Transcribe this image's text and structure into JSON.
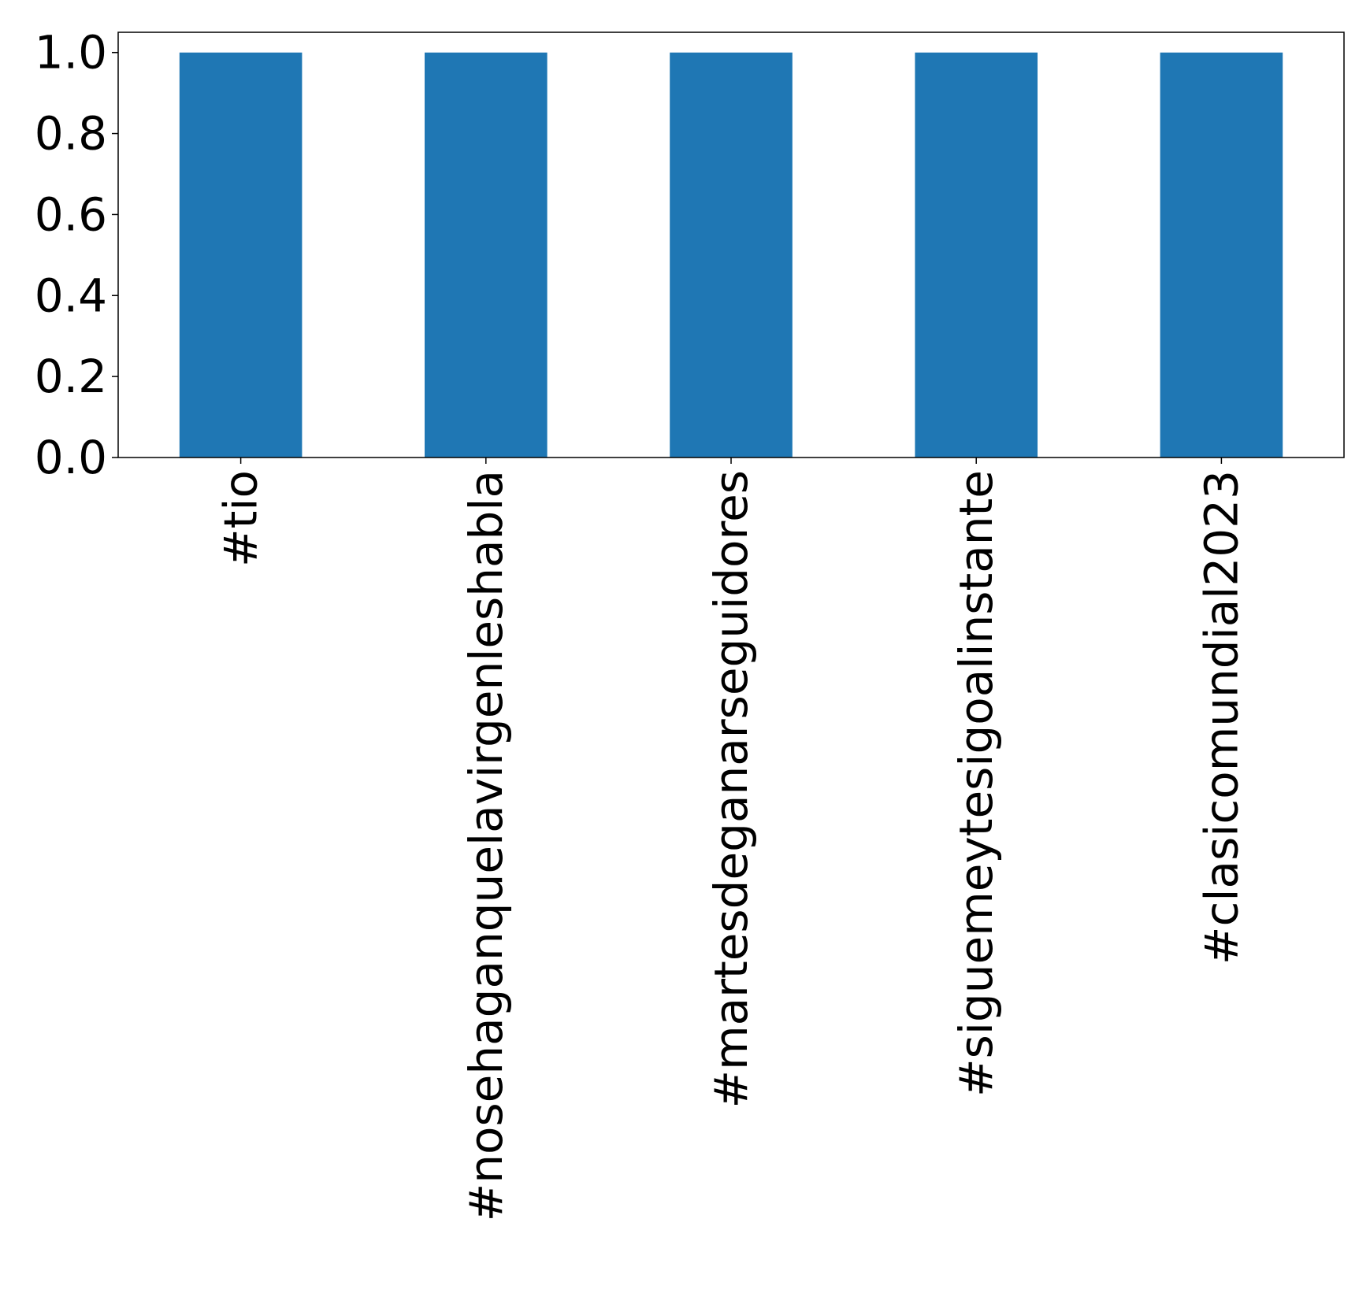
{
  "chart_data": {
    "type": "bar",
    "title": "",
    "xlabel": "",
    "ylabel": "",
    "categories": [
      "#tio",
      "#nosehaganquelavirgenleshabla",
      "#martesdeganarseguidores",
      "#siguemeytesigoalinstante",
      "#clasicomundial2023"
    ],
    "values": [
      1.0,
      1.0,
      1.0,
      1.0,
      1.0
    ],
    "ylim": [
      0.0,
      1.05
    ],
    "yticks": [
      0.0,
      0.2,
      0.4,
      0.6,
      0.8,
      1.0
    ],
    "ytick_labels": [
      "0.0",
      "0.2",
      "0.4",
      "0.6",
      "0.8",
      "1.0"
    ],
    "xtick_rotation": "vertical",
    "grid": false,
    "legend": "none",
    "bar_color": "#1f77b4"
  }
}
